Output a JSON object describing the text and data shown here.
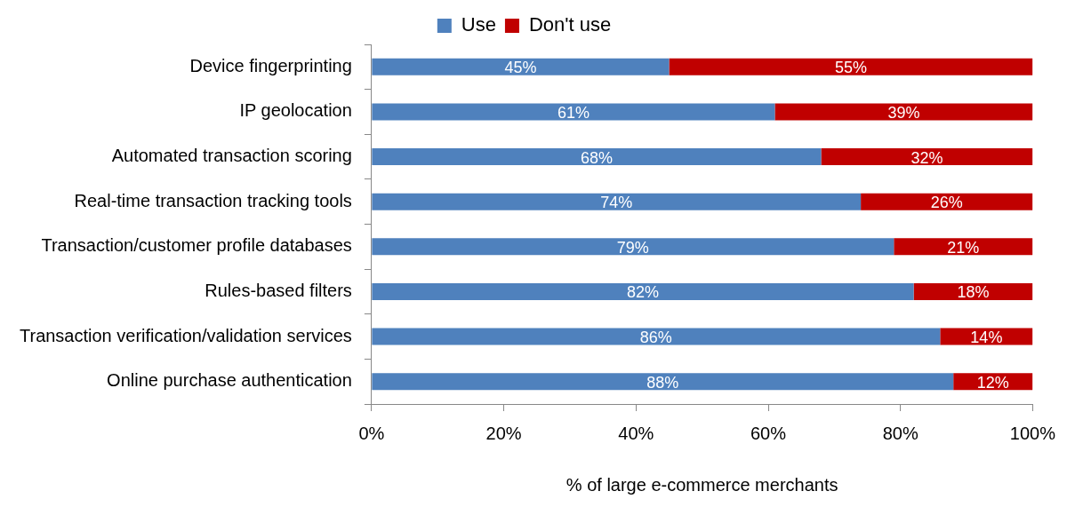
{
  "chart_data": {
    "type": "bar",
    "orientation": "horizontal",
    "stacked": true,
    "xlabel": "% of large e-commerce merchants",
    "categories": [
      "Device fingerprinting",
      "IP geolocation",
      "Automated transaction scoring",
      "Real-time transaction tracking tools",
      "Transaction/customer profile databases",
      "Rules-based filters",
      "Transaction verification/validation services",
      "Online purchase authentication"
    ],
    "series": [
      {
        "name": "Use",
        "color": "#4f81bd",
        "values": [
          45,
          61,
          68,
          74,
          79,
          82,
          86,
          88
        ],
        "value_labels": [
          "45%",
          "61%",
          "68%",
          "74%",
          "79%",
          "82%",
          "86%",
          "88%"
        ]
      },
      {
        "name": "Don't use",
        "color": "#c00000",
        "values": [
          55,
          39,
          32,
          26,
          21,
          18,
          14,
          12
        ],
        "value_labels": [
          "55%",
          "39%",
          "32%",
          "26%",
          "21%",
          "18%",
          "14%",
          "12%"
        ]
      }
    ],
    "xlim": [
      0,
      100
    ],
    "xticks": [
      {
        "value": 0,
        "label": "0%"
      },
      {
        "value": 20,
        "label": "20%"
      },
      {
        "value": 40,
        "label": "40%"
      },
      {
        "value": 60,
        "label": "60%"
      },
      {
        "value": 80,
        "label": "80%"
      },
      {
        "value": 100,
        "label": "100%"
      }
    ],
    "grid": false,
    "legend": "top"
  }
}
